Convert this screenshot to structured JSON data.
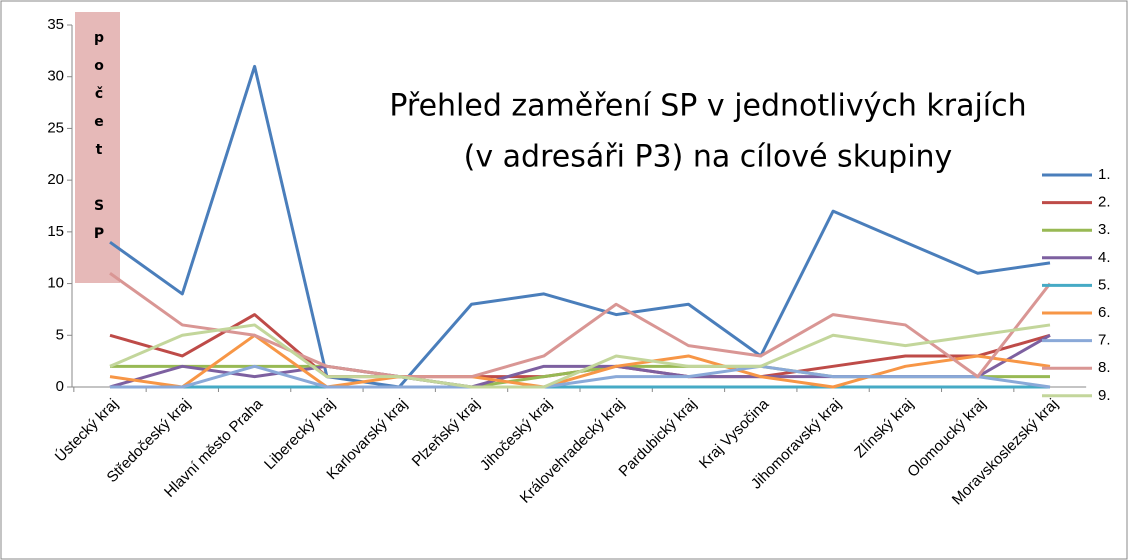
{
  "chart_data": {
    "type": "line",
    "title": [
      "Přehled zaměření SP v jednotlivých krajích",
      "(v adresáři P3) na cílové skupiny"
    ],
    "y_label": "počet SP",
    "categories": [
      "Ústecký kraj",
      "Středočeský kraj",
      "Hlavní město Praha",
      "Liberecký kraj",
      "Karlovarský kraj",
      "Plzeňský kraj",
      "Jihočeský kraj",
      "Královehradecký kraj",
      "Pardubický kraj",
      "Kraj Vysočina",
      "Jihomoravský kraj",
      "Zlínský kraj",
      "Olomoucký kraj",
      "Moravskoslezský kraj"
    ],
    "series": [
      {
        "name": "1.",
        "color": "#4a7ebb",
        "values": [
          14,
          9,
          31,
          1,
          0,
          8,
          9,
          7,
          8,
          3,
          17,
          14,
          11,
          12
        ]
      },
      {
        "name": "2.",
        "color": "#be4b48",
        "values": [
          5,
          3,
          7,
          1,
          1,
          1,
          1,
          2,
          1,
          1,
          2,
          3,
          3,
          5
        ]
      },
      {
        "name": "3.",
        "color": "#98b954",
        "values": [
          2,
          2,
          2,
          2,
          1,
          0,
          1,
          2,
          2,
          2,
          1,
          1,
          1,
          1
        ]
      },
      {
        "name": "4.",
        "color": "#7d60a0",
        "values": [
          0,
          2,
          1,
          2,
          1,
          0,
          2,
          2,
          1,
          1,
          1,
          1,
          1,
          5
        ]
      },
      {
        "name": "5.",
        "color": "#46aac5",
        "values": [
          0,
          0,
          0,
          0,
          0,
          0,
          0,
          0,
          0,
          0,
          0,
          0,
          0,
          0
        ]
      },
      {
        "name": "6.",
        "color": "#f79646",
        "values": [
          1,
          0,
          5,
          0,
          1,
          1,
          0,
          2,
          3,
          1,
          0,
          2,
          3,
          2
        ]
      },
      {
        "name": "7.",
        "color": "#8aa9d8",
        "values": [
          0,
          0,
          2,
          0,
          0,
          0,
          0,
          1,
          1,
          2,
          1,
          1,
          1,
          0
        ]
      },
      {
        "name": "8.",
        "color": "#d99694",
        "values": [
          11,
          6,
          5,
          2,
          1,
          1,
          3,
          8,
          4,
          3,
          7,
          6,
          1,
          10
        ]
      },
      {
        "name": "9.",
        "color": "#c3d69b",
        "values": [
          2,
          5,
          6,
          1,
          1,
          0,
          0,
          3,
          2,
          2,
          5,
          4,
          5,
          6
        ]
      }
    ],
    "ylim": [
      0,
      35
    ],
    "yticks": [
      0,
      5,
      10,
      15,
      20,
      25,
      30,
      35
    ],
    "grid": false,
    "legend": "right"
  }
}
